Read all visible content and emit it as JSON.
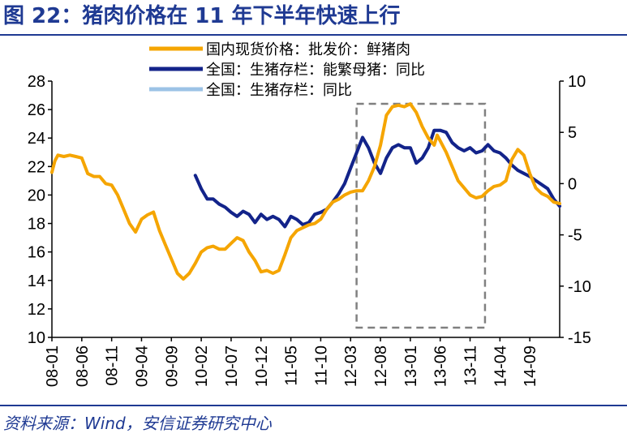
{
  "figure": {
    "title": "图 22：猪肉价格在 11 年下半年快速上行",
    "source": "资料来源：Wind，安信证券研究中心"
  },
  "chart_data": {
    "type": "line",
    "title": "",
    "xlabel": "",
    "ylabel": "",
    "x_tick_labels": [
      "08-01",
      "08-06",
      "08-11",
      "09-04",
      "09-09",
      "10-02",
      "10-07",
      "10-12",
      "11-05",
      "11-10",
      "12-03",
      "12-08",
      "13-01",
      "13-06",
      "13-11",
      "14-04",
      "14-09"
    ],
    "y_left": {
      "min": 10,
      "max": 28,
      "ticks": [
        10,
        12,
        14,
        16,
        18,
        20,
        22,
        24,
        26,
        28
      ]
    },
    "y_right": {
      "min": -15,
      "max": 10,
      "ticks": [
        -15,
        -10,
        -5,
        0,
        5,
        10
      ]
    },
    "x_range": [
      0,
      85
    ],
    "legend_position": "top-center",
    "highlight_box": {
      "x_start": 51,
      "x_end": 72.5,
      "note": "dashed box around 10-12 to 12-03"
    },
    "series": [
      {
        "name": "国内现货价格：批发价：鲜猪肉",
        "axis": "left",
        "color": "#f5a500",
        "points": [
          [
            0,
            21.6
          ],
          [
            0.5,
            22.4
          ],
          [
            1,
            22.8
          ],
          [
            2,
            22.7
          ],
          [
            3,
            22.8
          ],
          [
            4,
            22.7
          ],
          [
            5,
            22.6
          ],
          [
            6,
            21.5
          ],
          [
            7,
            21.3
          ],
          [
            8,
            21.3
          ],
          [
            9,
            20.8
          ],
          [
            10,
            20.7
          ],
          [
            11,
            20.0
          ],
          [
            12,
            19.0
          ],
          [
            13,
            18.0
          ],
          [
            14,
            17.4
          ],
          [
            15,
            18.3
          ],
          [
            16,
            18.6
          ],
          [
            17,
            18.8
          ],
          [
            18,
            17.5
          ],
          [
            19,
            16.5
          ],
          [
            20,
            15.5
          ],
          [
            21,
            14.5
          ],
          [
            22,
            14.1
          ],
          [
            23,
            14.5
          ],
          [
            24,
            15.2
          ],
          [
            25,
            16.0
          ],
          [
            26,
            16.3
          ],
          [
            27,
            16.4
          ],
          [
            28,
            16.2
          ],
          [
            29,
            16.2
          ],
          [
            30,
            16.6
          ],
          [
            31,
            17.0
          ],
          [
            32,
            16.8
          ],
          [
            33,
            16.0
          ],
          [
            34,
            15.4
          ],
          [
            35,
            14.6
          ],
          [
            36,
            14.7
          ],
          [
            37,
            14.5
          ],
          [
            38,
            14.7
          ],
          [
            39,
            15.8
          ],
          [
            40,
            17.0
          ],
          [
            41,
            17.5
          ],
          [
            42,
            17.7
          ],
          [
            43,
            17.9
          ],
          [
            44,
            18.0
          ],
          [
            45,
            18.3
          ],
          [
            46,
            19.0
          ],
          [
            47,
            19.5
          ],
          [
            48,
            19.7
          ],
          [
            49,
            20.0
          ],
          [
            50,
            20.2
          ],
          [
            51,
            20.3
          ],
          [
            52,
            20.3
          ],
          [
            53,
            21.0
          ],
          [
            54,
            22.0
          ],
          [
            55,
            23.5
          ],
          [
            56,
            25.6
          ],
          [
            57,
            26.2
          ],
          [
            58,
            26.3
          ],
          [
            59,
            26.2
          ],
          [
            60,
            26.4
          ],
          [
            61,
            25.8
          ],
          [
            62,
            24.8
          ],
          [
            63,
            24.0
          ],
          [
            64,
            23.5
          ],
          [
            64.5,
            24.2
          ],
          [
            65,
            23.8
          ],
          [
            66,
            23.0
          ],
          [
            67,
            22.0
          ],
          [
            68,
            21.0
          ],
          [
            69,
            20.5
          ],
          [
            70,
            20.0
          ],
          [
            71,
            19.8
          ],
          [
            72,
            19.9
          ],
          [
            73,
            20.3
          ],
          [
            74,
            20.6
          ],
          [
            75,
            20.7
          ],
          [
            76,
            21.0
          ],
          [
            77,
            22.5
          ],
          [
            78,
            23.2
          ],
          [
            79,
            22.8
          ],
          [
            80,
            21.5
          ],
          [
            81,
            20.5
          ],
          [
            82,
            20.1
          ],
          [
            83,
            19.9
          ],
          [
            84,
            19.5
          ],
          [
            85,
            19.4
          ]
        ]
      },
      {
        "name": "全国：生猪存栏：能繁母猪：同比",
        "axis": "right",
        "color": "#13238a",
        "points": [
          [
            24,
            0.8
          ],
          [
            25,
            -0.5
          ],
          [
            26,
            -1.5
          ],
          [
            27,
            -1.5
          ],
          [
            28,
            -2.0
          ],
          [
            29,
            -2.3
          ],
          [
            30,
            -2.8
          ],
          [
            31,
            -3.2
          ],
          [
            32,
            -2.7
          ],
          [
            33,
            -3.0
          ],
          [
            34,
            -3.8
          ],
          [
            35,
            -3.0
          ],
          [
            36,
            -3.5
          ],
          [
            37,
            -3.2
          ],
          [
            38,
            -3.5
          ],
          [
            39,
            -4.2
          ],
          [
            40,
            -3.2
          ],
          [
            41,
            -3.5
          ],
          [
            42,
            -4.0
          ],
          [
            43,
            -3.8
          ],
          [
            44,
            -3.0
          ],
          [
            45,
            -2.8
          ],
          [
            46,
            -2.5
          ],
          [
            47,
            -1.8
          ],
          [
            48,
            -1.0
          ],
          [
            49,
            0.0
          ],
          [
            50,
            1.5
          ],
          [
            51,
            3.0
          ],
          [
            52,
            4.5
          ],
          [
            53,
            3.5
          ],
          [
            54,
            2.0
          ],
          [
            55,
            1.0
          ],
          [
            56,
            2.5
          ],
          [
            57,
            3.5
          ],
          [
            58,
            3.8
          ],
          [
            59,
            3.5
          ],
          [
            60,
            3.5
          ],
          [
            61,
            2.0
          ],
          [
            62,
            2.5
          ],
          [
            63,
            3.5
          ],
          [
            64,
            5.2
          ],
          [
            65,
            5.2
          ],
          [
            66,
            5.0
          ],
          [
            67,
            4.0
          ],
          [
            68,
            3.5
          ],
          [
            69,
            3.2
          ],
          [
            70,
            3.5
          ],
          [
            71,
            3.0
          ],
          [
            72,
            3.2
          ],
          [
            73,
            3.8
          ],
          [
            74,
            3.2
          ],
          [
            75,
            3.0
          ],
          [
            76,
            2.5
          ],
          [
            77,
            1.8
          ],
          [
            78,
            1.3
          ],
          [
            79,
            1.0
          ],
          [
            80,
            0.7
          ],
          [
            81,
            0.3
          ],
          [
            82,
            -0.1
          ],
          [
            83,
            -0.5
          ],
          [
            84,
            -1.5
          ],
          [
            85,
            -2.2
          ]
        ]
      },
      {
        "name": "全国：生猪存栏：同比",
        "axis": "right",
        "color": "#9cc3e6",
        "points": [
          [
            24,
            0.8
          ],
          [
            25,
            -0.5
          ],
          [
            26,
            -1.5
          ],
          [
            27,
            -1.5
          ],
          [
            28,
            -2.0
          ],
          [
            29,
            -2.3
          ],
          [
            30,
            -2.8
          ],
          [
            31,
            -3.2
          ],
          [
            32,
            -2.7
          ],
          [
            33,
            -3.0
          ],
          [
            34,
            -3.8
          ],
          [
            35,
            -3.0
          ],
          [
            36,
            -3.5
          ],
          [
            37,
            -3.2
          ],
          [
            38,
            -3.5
          ],
          [
            39,
            -4.2
          ],
          [
            40,
            -3.2
          ],
          [
            41,
            -3.5
          ],
          [
            42,
            -4.0
          ],
          [
            43,
            -3.8
          ],
          [
            44,
            -3.0
          ],
          [
            45,
            -2.8
          ],
          [
            46,
            -2.5
          ],
          [
            47,
            -1.8
          ],
          [
            48,
            -1.0
          ],
          [
            49,
            0.0
          ],
          [
            50,
            1.5
          ],
          [
            51,
            3.0
          ],
          [
            52,
            4.5
          ],
          [
            53,
            3.5
          ],
          [
            54,
            2.0
          ],
          [
            55,
            1.0
          ],
          [
            56,
            2.5
          ],
          [
            57,
            3.5
          ],
          [
            58,
            3.8
          ],
          [
            59,
            3.5
          ],
          [
            60,
            3.5
          ],
          [
            61,
            2.0
          ],
          [
            62,
            2.5
          ],
          [
            63,
            3.5
          ],
          [
            64,
            5.2
          ],
          [
            65,
            5.2
          ],
          [
            66,
            5.0
          ],
          [
            67,
            4.0
          ],
          [
            68,
            3.5
          ],
          [
            69,
            3.2
          ],
          [
            70,
            3.5
          ],
          [
            71,
            3.0
          ],
          [
            72,
            3.2
          ],
          [
            73,
            3.8
          ],
          [
            74,
            3.2
          ],
          [
            75,
            3.0
          ],
          [
            76,
            2.5
          ],
          [
            77,
            1.8
          ],
          [
            78,
            1.3
          ],
          [
            79,
            1.0
          ],
          [
            80,
            0.7
          ],
          [
            81,
            0.3
          ],
          [
            82,
            -0.1
          ],
          [
            83,
            -0.5
          ],
          [
            84,
            -1.5
          ],
          [
            85,
            -2.2
          ]
        ]
      }
    ]
  }
}
